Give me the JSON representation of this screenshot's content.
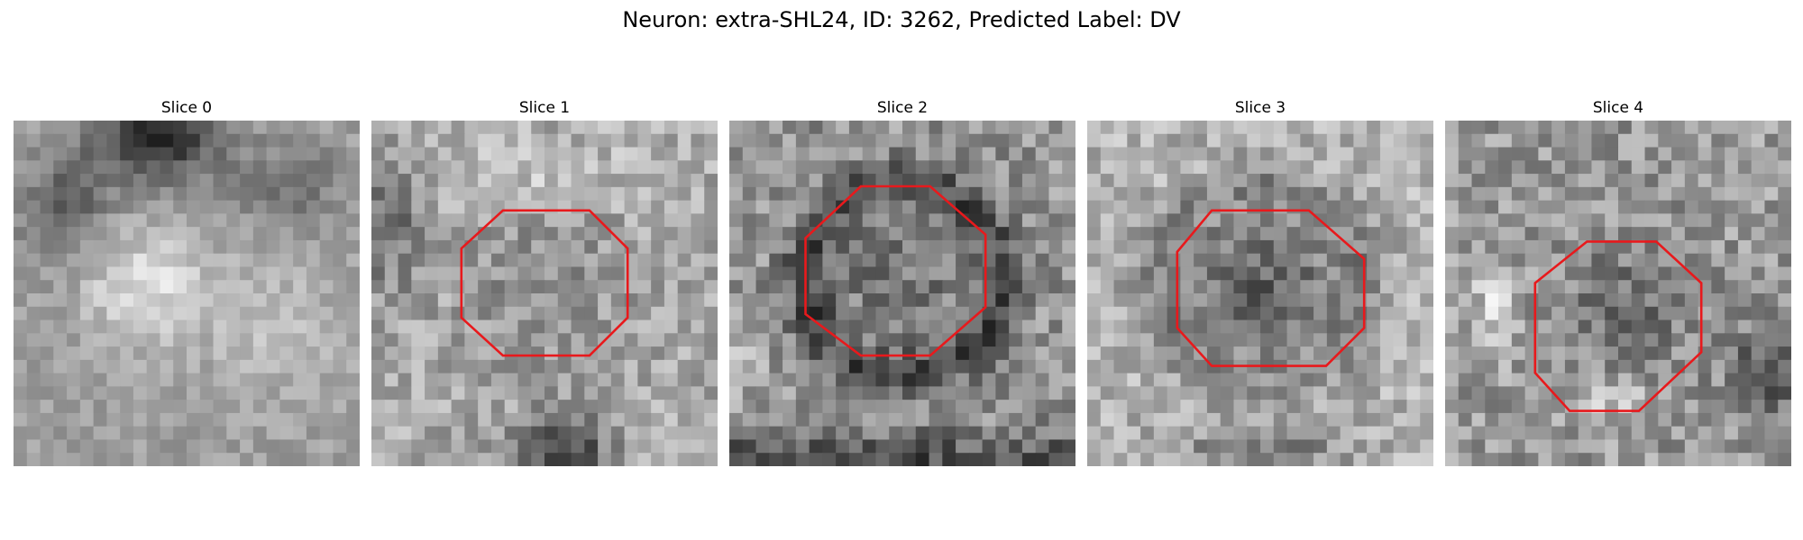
{
  "figure": {
    "title": "Neuron: extra-SHL24, ID: 3262, Predicted Label: DV"
  },
  "colors": {
    "outline": "#e8191c",
    "background": "#ffffff"
  },
  "panels": [
    {
      "title": "Slice 0",
      "has_outline": false,
      "texture": "bright blob center-left, dark patch top-center, light lower region"
    },
    {
      "title": "Slice 1",
      "has_outline": true,
      "texture": "bright speckled field, octagon region medium gray, dark patch bottom-center"
    },
    {
      "title": "Slice 2",
      "has_outline": true,
      "texture": "dark ring around octagon, dark bottom band"
    },
    {
      "title": "Slice 3",
      "has_outline": true,
      "texture": "light field with darker octagon interior"
    },
    {
      "title": "Slice 4",
      "has_outline": true,
      "texture": "noisy gray field, lower octagon, bright left edge"
    }
  ]
}
